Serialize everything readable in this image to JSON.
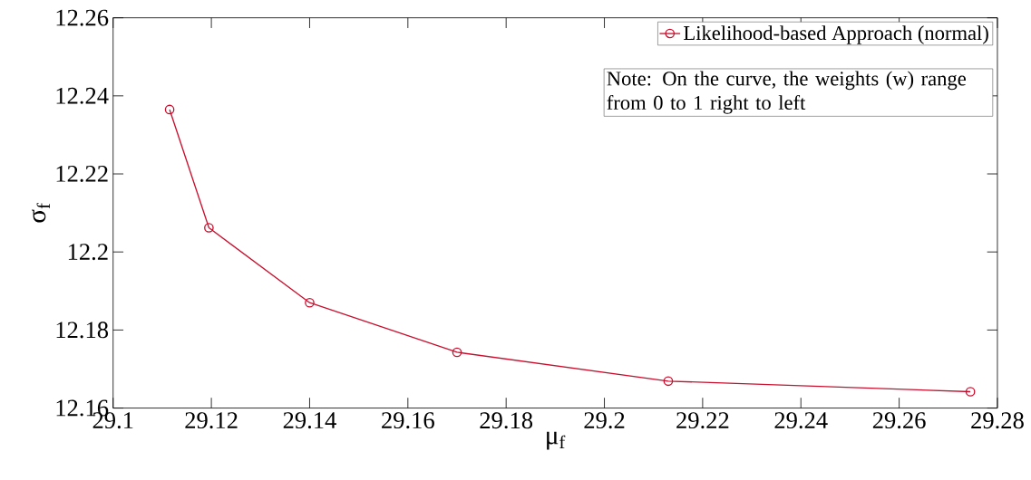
{
  "chart_data": {
    "type": "line",
    "xlabel": "μ$_{f}$",
    "ylabel": "σ$_{f}$",
    "x": [
      29.1115,
      29.1195,
      29.14,
      29.17,
      29.213,
      29.2745
    ],
    "series": [
      {
        "name": "Likelihood-based Approach (normal)",
        "color": "#c8102e",
        "values": [
          12.2365,
          12.2062,
          12.187,
          12.1743,
          12.1669,
          12.1642
        ]
      }
    ],
    "xlim": [
      29.1,
      29.28
    ],
    "xticks": [
      29.1,
      29.12,
      29.14,
      29.16,
      29.18,
      29.2,
      29.22,
      29.24,
      29.26,
      29.28
    ],
    "ylim": [
      12.16,
      12.26
    ],
    "yticks": [
      12.16,
      12.18,
      12.2,
      12.22,
      12.24,
      12.26
    ],
    "annotations": [
      "Note: On the curve, the weights (w) range from 0 to 1 right to left"
    ],
    "marker": "circle",
    "line_style": "solid",
    "legend": "top right",
    "grid": false
  }
}
